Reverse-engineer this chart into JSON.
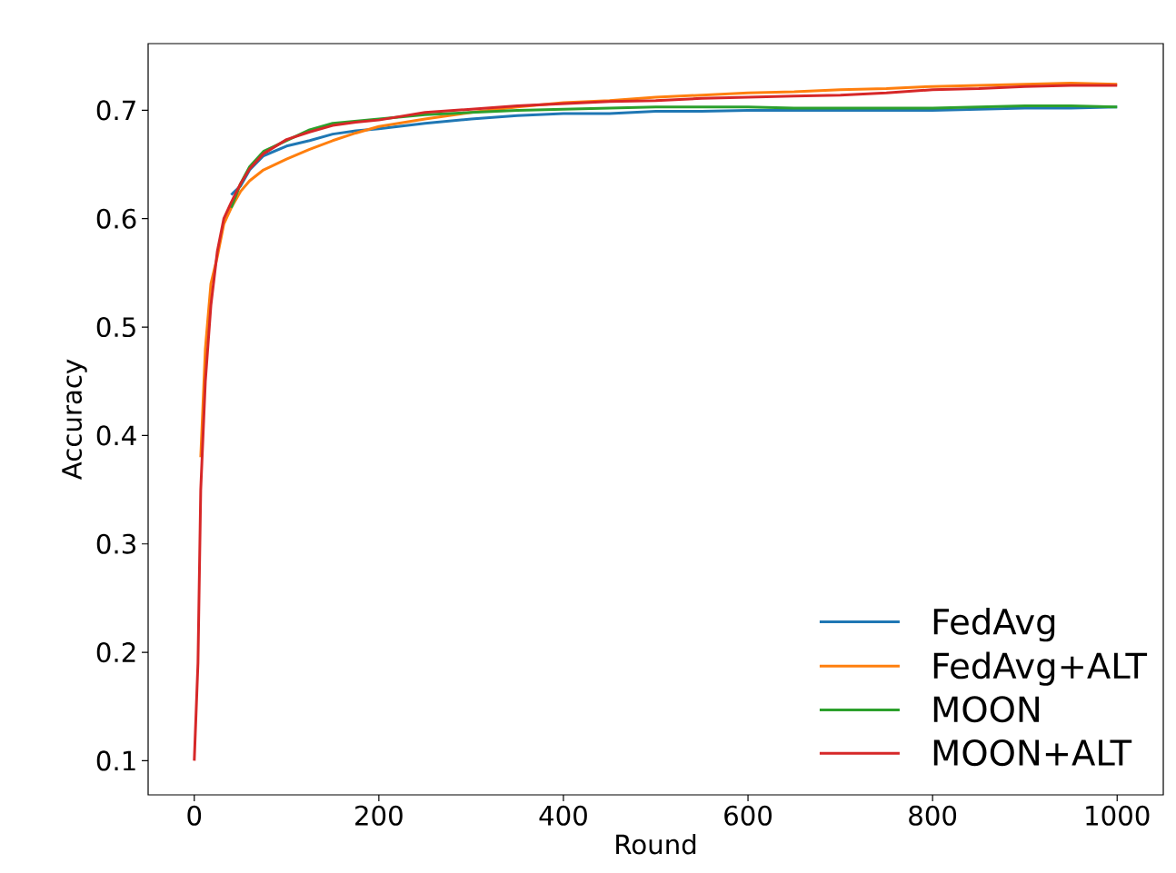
{
  "chart_data": {
    "type": "line",
    "xlabel": "Round",
    "ylabel": "Accuracy",
    "x": [
      0,
      4,
      7,
      12,
      18,
      25,
      32,
      40,
      50,
      60,
      75,
      100,
      125,
      150,
      175,
      200,
      250,
      300,
      350,
      400,
      450,
      500,
      550,
      600,
      650,
      700,
      750,
      800,
      850,
      900,
      950,
      1000
    ],
    "series": [
      {
        "name": "FedAvg",
        "color": "#1f77b4",
        "values": [
          null,
          null,
          null,
          null,
          null,
          null,
          null,
          0.622,
          0.63,
          0.645,
          0.658,
          0.667,
          0.672,
          0.678,
          0.681,
          0.683,
          0.688,
          0.692,
          0.695,
          0.697,
          0.697,
          0.699,
          0.699,
          0.7,
          0.7,
          0.7,
          0.7,
          0.7,
          0.701,
          0.702,
          0.702,
          0.703
        ]
      },
      {
        "name": "FedAvg+ALT",
        "color": "#ff7f0e",
        "values": [
          null,
          null,
          0.38,
          0.48,
          0.54,
          0.565,
          0.595,
          0.61,
          0.625,
          0.635,
          0.645,
          0.655,
          0.664,
          0.672,
          0.679,
          0.685,
          0.692,
          0.698,
          0.703,
          0.707,
          0.709,
          0.712,
          0.714,
          0.716,
          0.717,
          0.719,
          0.72,
          0.722,
          0.723,
          0.724,
          0.725,
          0.724
        ]
      },
      {
        "name": "MOON",
        "color": "#2ca02c",
        "values": [
          null,
          null,
          null,
          null,
          null,
          null,
          null,
          0.61,
          0.632,
          0.648,
          0.662,
          0.672,
          0.682,
          0.688,
          0.69,
          0.692,
          0.696,
          0.698,
          0.7,
          0.701,
          0.702,
          0.703,
          0.703,
          0.703,
          0.702,
          0.702,
          0.702,
          0.702,
          0.703,
          0.704,
          0.704,
          0.703
        ]
      },
      {
        "name": "MOON+ALT",
        "color": "#d62728",
        "values": [
          0.1,
          0.19,
          0.35,
          0.45,
          0.52,
          0.57,
          0.6,
          0.615,
          0.632,
          0.646,
          0.66,
          0.673,
          0.68,
          0.686,
          0.689,
          0.691,
          0.698,
          0.701,
          0.704,
          0.706,
          0.708,
          0.709,
          0.711,
          0.712,
          0.713,
          0.714,
          0.716,
          0.719,
          0.72,
          0.722,
          0.723,
          0.723
        ]
      }
    ],
    "xlim": [
      -50,
      1050
    ],
    "ylim": [
      0.0685,
      0.7615
    ],
    "xticks": [
      0,
      200,
      400,
      600,
      800,
      1000
    ],
    "yticks": [
      {
        "value": 0.1,
        "label": "0.1"
      },
      {
        "value": 0.2,
        "label": "0.2"
      },
      {
        "value": 0.3,
        "label": "0.3"
      },
      {
        "value": 0.4,
        "label": "0.4"
      },
      {
        "value": 0.5,
        "label": "0.5"
      },
      {
        "value": 0.6,
        "label": "0.6"
      },
      {
        "value": 0.7,
        "label": "0.7"
      }
    ],
    "grid": false,
    "legend": "bottom right",
    "line_style": "solid",
    "marker": "none"
  }
}
